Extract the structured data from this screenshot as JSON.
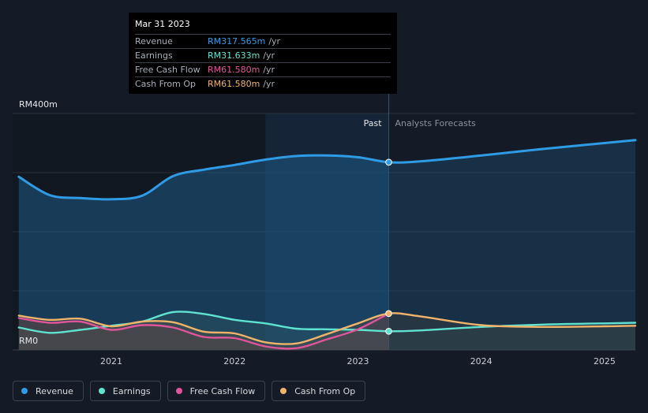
{
  "tooltip": {
    "date": "Mar 31 2023",
    "rows": [
      {
        "label": "Revenue",
        "value": "RM317.565m",
        "unit": "/yr",
        "color": "#2f9be5"
      },
      {
        "label": "Earnings",
        "value": "RM31.633m",
        "unit": "/yr",
        "color": "#5fe3d0"
      },
      {
        "label": "Free Cash Flow",
        "value": "RM61.580m",
        "unit": "/yr",
        "color": "#e0559a"
      },
      {
        "label": "Cash From Op",
        "value": "RM61.580m",
        "unit": "/yr",
        "color": "#f0b36a"
      }
    ]
  },
  "legend": [
    {
      "label": "Revenue",
      "color": "#2f9be5"
    },
    {
      "label": "Earnings",
      "color": "#5fe3d0"
    },
    {
      "label": "Free Cash Flow",
      "color": "#e0559a"
    },
    {
      "label": "Cash From Op",
      "color": "#f0b36a"
    }
  ],
  "chart_data": {
    "type": "line",
    "title": "",
    "y_max_label": "RM400m",
    "y_min_label": "RM0",
    "past_label": "Past",
    "forecast_label": "Analysts Forecasts",
    "divider_x": 2023.25,
    "highlight_range": [
      2022.25,
      2023.25
    ],
    "xlim": [
      2020.2,
      2025.25
    ],
    "ylim": [
      0,
      400
    ],
    "xticks": [
      {
        "x": 2021,
        "label": "2021"
      },
      {
        "x": 2022,
        "label": "2022"
      },
      {
        "x": 2023,
        "label": "2023"
      },
      {
        "x": 2024,
        "label": "2024"
      },
      {
        "x": 2025,
        "label": "2025"
      }
    ],
    "grid": true,
    "series": [
      {
        "name": "Revenue",
        "color": "#2f9be5",
        "x": [
          2020.25,
          2020.5,
          2020.75,
          2021.0,
          2021.25,
          2021.5,
          2021.75,
          2022.0,
          2022.25,
          2022.5,
          2022.75,
          2023.0,
          2023.25,
          2023.5,
          2024.0,
          2024.5,
          2025.0,
          2025.25
        ],
        "y": [
          293,
          262,
          257,
          255,
          261,
          294,
          305,
          313,
          322,
          328,
          329,
          326,
          317.6,
          319,
          329,
          340,
          350,
          355
        ]
      },
      {
        "name": "Earnings",
        "color": "#5fe3d0",
        "x": [
          2020.25,
          2020.5,
          2020.75,
          2021.0,
          2021.25,
          2021.5,
          2021.75,
          2022.0,
          2022.25,
          2022.5,
          2022.75,
          2023.0,
          2023.25,
          2023.5,
          2024.0,
          2024.5,
          2025.0,
          2025.25
        ],
        "y": [
          38,
          29,
          34,
          41,
          48,
          64,
          61,
          51,
          45,
          36,
          35,
          34,
          31.6,
          33,
          39,
          43,
          45,
          46
        ]
      },
      {
        "name": "Free Cash Flow",
        "color": "#e0559a",
        "x": [
          2020.25,
          2020.5,
          2020.75,
          2021.0,
          2021.25,
          2021.5,
          2021.75,
          2022.0,
          2022.25,
          2022.5,
          2022.75,
          2023.0,
          2023.25
        ],
        "y": [
          54,
          46,
          48,
          34,
          42,
          38,
          22,
          20,
          6,
          3,
          18,
          35,
          61.6
        ]
      },
      {
        "name": "Cash From Op",
        "color": "#f0b36a",
        "x": [
          2020.25,
          2020.5,
          2020.75,
          2021.0,
          2021.25,
          2021.5,
          2021.75,
          2022.0,
          2022.25,
          2022.5,
          2022.75,
          2023.0,
          2023.25,
          2023.5,
          2024.0,
          2024.5,
          2025.0,
          2025.25
        ],
        "y": [
          58,
          51,
          53,
          40,
          48,
          47,
          31,
          28,
          13,
          11,
          27,
          45,
          61.6,
          57,
          42,
          39,
          40,
          41
        ]
      }
    ]
  }
}
